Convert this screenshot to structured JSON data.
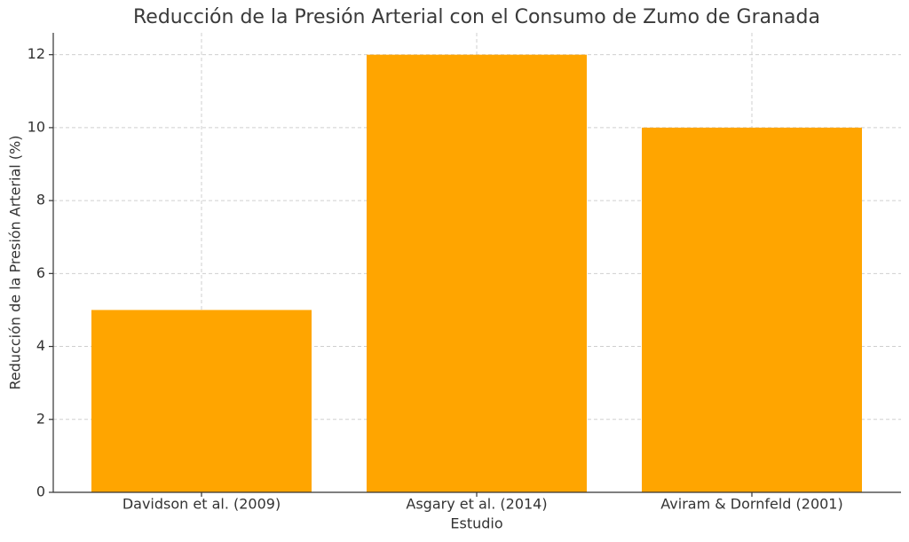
{
  "chart_data": {
    "type": "bar",
    "title": "Reducción de la Presión Arterial con el Consumo de Zumo de Granada",
    "x_label": "Estudio",
    "y_label": "Reducción de la Presión Arterial (%)",
    "categories": [
      "Davidson et al. (2009)",
      "Asgary et al. (2014)",
      "Aviram & Dornfeld (2001)"
    ],
    "values": [
      5,
      12,
      10
    ],
    "color": "#ffa500",
    "ylim": [
      0,
      12.6
    ],
    "yticks": [
      0,
      2,
      4,
      6,
      8,
      10,
      12
    ],
    "grid": true
  }
}
